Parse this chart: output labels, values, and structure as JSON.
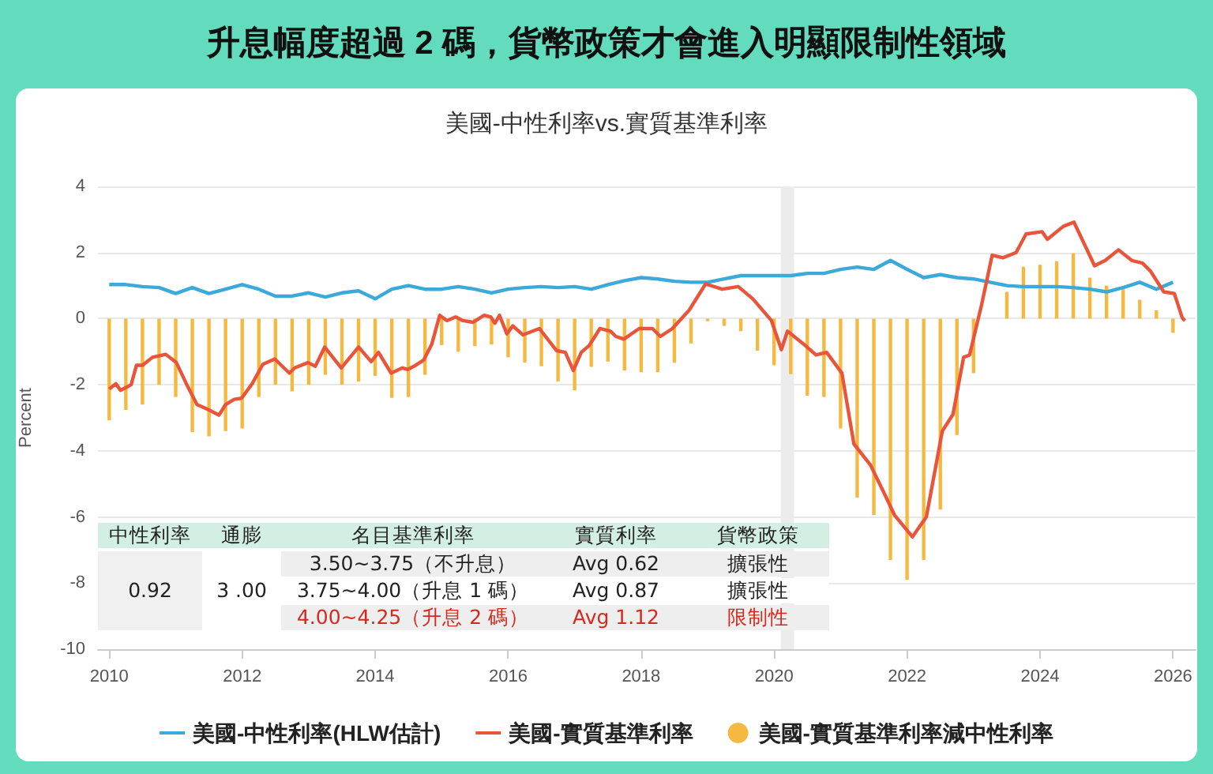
{
  "chart_data": {
    "type": "line",
    "title": "升息幅度超過 2 碼，貨幣政策才會進入明顯限制性領域",
    "subtitle": "美國-中性利率vs.實質基準利率",
    "ylabel": "Percent",
    "xlim": [
      2009.83,
      2026.34
    ],
    "xticks": [
      2010,
      2012,
      2014,
      2016,
      2018,
      2020,
      2022,
      2024,
      2026
    ],
    "ylim": [
      -10,
      4
    ],
    "yticks": [
      -10,
      -8,
      -6,
      -4,
      -2,
      0,
      2,
      4
    ],
    "grid": "y",
    "legend": "bottom",
    "bands": [
      {
        "axis": "x",
        "from": 2020.1,
        "to": 2020.3,
        "color": "#ececec"
      }
    ],
    "annotations": [
      "中性利率",
      "通膨",
      "名目基準利率",
      "實質利率",
      "貨幣政策",
      "0.92",
      "3 .00",
      "3.50~3.75（不升息）",
      "Avg 0.62",
      "擴張性",
      "3.75~4.00（升息 1 碼）",
      "Avg 0.87",
      "擴張性",
      "4.00~4.25（升息 2 碼）",
      "Avg 1.12",
      "限制性"
    ],
    "series": [
      {
        "name": "美國-中性利率(HLW估計)",
        "color": "#3ba9d9",
        "x": [
          2010,
          2010.25,
          2010.5,
          2010.75,
          2011,
          2011.25,
          2011.5,
          2011.75,
          2012,
          2012.25,
          2012.5,
          2012.75,
          2013,
          2013.25,
          2013.5,
          2013.75,
          2014,
          2014.25,
          2014.5,
          2014.75,
          2015,
          2015.25,
          2015.5,
          2015.75,
          2016,
          2016.25,
          2016.5,
          2016.75,
          2017,
          2017.25,
          2017.5,
          2017.75,
          2018,
          2018.25,
          2018.5,
          2018.75,
          2019,
          2019.25,
          2019.5,
          2019.75,
          2020,
          2020.25,
          2020.5,
          2020.75,
          2021,
          2021.25,
          2021.5,
          2021.75,
          2022,
          2022.25,
          2022.5,
          2022.75,
          2023,
          2023.25,
          2023.5,
          2023.75,
          2024,
          2024.25,
          2024.5,
          2024.75,
          2025,
          2025.25,
          2025.5,
          2025.75,
          2026
        ],
        "values": [
          1.03,
          1.03,
          0.97,
          0.94,
          0.76,
          0.94,
          0.76,
          0.89,
          1.03,
          0.89,
          0.68,
          0.68,
          0.78,
          0.65,
          0.78,
          0.84,
          0.6,
          0.89,
          1.0,
          0.89,
          0.89,
          0.97,
          0.89,
          0.78,
          0.89,
          0.94,
          0.97,
          0.94,
          0.97,
          0.89,
          1.03,
          1.15,
          1.24,
          1.2,
          1.13,
          1.1,
          1.1,
          1.2,
          1.3,
          1.3,
          1.3,
          1.3,
          1.37,
          1.37,
          1.49,
          1.56,
          1.49,
          1.76,
          1.49,
          1.24,
          1.33,
          1.24,
          1.2,
          1.1,
          1.0,
          0.97,
          0.97,
          0.97,
          0.94,
          0.89,
          0.81,
          0.94,
          1.1,
          0.89,
          1.1
        ]
      },
      {
        "name": "美國-實質基準利率",
        "color": "#e8553a",
        "x": [
          2010,
          2010.1,
          2010.17,
          2010.33,
          2010.41,
          2010.5,
          2010.65,
          2010.85,
          2011.01,
          2011.16,
          2011.32,
          2011.5,
          2011.65,
          2011.75,
          2011.88,
          2011.99,
          2012.15,
          2012.31,
          2012.49,
          2012.71,
          2012.79,
          2012.99,
          2013.1,
          2013.24,
          2013.49,
          2013.75,
          2013.94,
          2014.05,
          2014.24,
          2014.41,
          2014.49,
          2014.61,
          2014.73,
          2014.85,
          2014.97,
          2015.08,
          2015.21,
          2015.32,
          2015.47,
          2015.64,
          2015.74,
          2015.8,
          2015.87,
          2015.98,
          2016.07,
          2016.22,
          2016.47,
          2016.73,
          2016.86,
          2016.98,
          2017.1,
          2017.22,
          2017.38,
          2017.54,
          2017.62,
          2017.74,
          2017.97,
          2018.17,
          2018.29,
          2018.47,
          2018.72,
          2018.97,
          2019.22,
          2019.46,
          2019.68,
          2019.96,
          2020.11,
          2020.2,
          2020.45,
          2020.63,
          2020.79,
          2021.02,
          2021.2,
          2021.45,
          2021.66,
          2021.81,
          2022.08,
          2022.29,
          2022.53,
          2022.69,
          2022.85,
          2022.94,
          2023.12,
          2023.28,
          2023.44,
          2023.64,
          2023.79,
          2024.03,
          2024.11,
          2024.35,
          2024.51,
          2024.82,
          2024.98,
          2025.18,
          2025.38,
          2025.54,
          2025.66,
          2025.86,
          2026.02,
          2026.14,
          2026.18
        ],
        "values": [
          -2.13,
          -1.97,
          -2.17,
          -2.0,
          -1.41,
          -1.41,
          -1.17,
          -1.08,
          -1.33,
          -1.97,
          -2.6,
          -2.76,
          -2.92,
          -2.6,
          -2.44,
          -2.41,
          -1.97,
          -1.38,
          -1.22,
          -1.65,
          -1.49,
          -1.33,
          -1.44,
          -0.86,
          -1.49,
          -0.86,
          -1.3,
          -1.02,
          -1.65,
          -1.49,
          -1.54,
          -1.41,
          -1.25,
          -0.78,
          0.1,
          -0.06,
          0.05,
          -0.06,
          -0.11,
          0.1,
          0.05,
          -0.14,
          0.1,
          -0.46,
          -0.22,
          -0.49,
          -0.3,
          -0.97,
          -1.02,
          -1.57,
          -1.02,
          -0.81,
          -0.3,
          -0.38,
          -0.54,
          -0.62,
          -0.3,
          -0.3,
          -0.54,
          -0.3,
          0.25,
          1.05,
          0.89,
          0.97,
          0.6,
          -0.06,
          -0.94,
          -0.38,
          -0.78,
          -1.1,
          -1.02,
          -1.65,
          -3.79,
          -4.43,
          -5.3,
          -5.94,
          -6.6,
          -6.0,
          -3.4,
          -2.9,
          -1.17,
          -1.1,
          0.41,
          1.92,
          1.84,
          2.0,
          2.56,
          2.63,
          2.4,
          2.79,
          2.92,
          1.6,
          1.76,
          2.08,
          1.76,
          1.68,
          1.44,
          0.81,
          0.76,
          0.02,
          -0.06
        ]
      },
      {
        "name": "美國-實質基準利率減中性利率",
        "type": "bar",
        "color": "#f5b942",
        "x": [
          2010,
          2010.25,
          2010.5,
          2010.75,
          2011,
          2011.25,
          2011.5,
          2011.75,
          2012,
          2012.25,
          2012.5,
          2012.75,
          2013,
          2013.25,
          2013.5,
          2013.75,
          2014,
          2014.25,
          2014.5,
          2014.75,
          2015,
          2015.25,
          2015.5,
          2015.75,
          2016,
          2016.25,
          2016.5,
          2016.75,
          2017,
          2017.25,
          2017.5,
          2017.75,
          2018,
          2018.25,
          2018.5,
          2018.75,
          2019,
          2019.25,
          2019.5,
          2019.75,
          2020,
          2020.25,
          2020.5,
          2020.75,
          2021,
          2021.25,
          2021.5,
          2021.75,
          2022,
          2022.25,
          2022.5,
          2022.75,
          2023,
          2023.25,
          2023.5,
          2023.75,
          2024,
          2024.25,
          2024.5,
          2024.75,
          2025,
          2025.25,
          2025.5,
          2025.75,
          2026
        ],
        "values": [
          -3.08,
          -2.76,
          -2.6,
          -2.0,
          -2.37,
          -3.43,
          -3.56,
          -3.4,
          -3.32,
          -2.37,
          -2.0,
          -2.2,
          -2.0,
          -1.7,
          -2.0,
          -1.9,
          -1.73,
          -2.4,
          -2.37,
          -1.7,
          -0.8,
          -1.0,
          -0.83,
          -0.78,
          -1.17,
          -1.33,
          -1.44,
          -1.9,
          -2.17,
          -1.46,
          -1.3,
          -1.57,
          -1.62,
          -1.62,
          -1.33,
          -0.75,
          -0.08,
          -0.22,
          -0.38,
          -0.97,
          -1.41,
          -1.68,
          -2.33,
          -2.37,
          -3.32,
          -5.41,
          -5.94,
          -7.3,
          -7.9,
          -7.3,
          -5.78,
          -3.52,
          -1.65,
          null,
          0.81,
          1.57,
          1.63,
          1.73,
          1.98,
          1.24,
          1.0,
          0.89,
          0.57,
          0.25,
          -0.43
        ]
      }
    ]
  }
}
